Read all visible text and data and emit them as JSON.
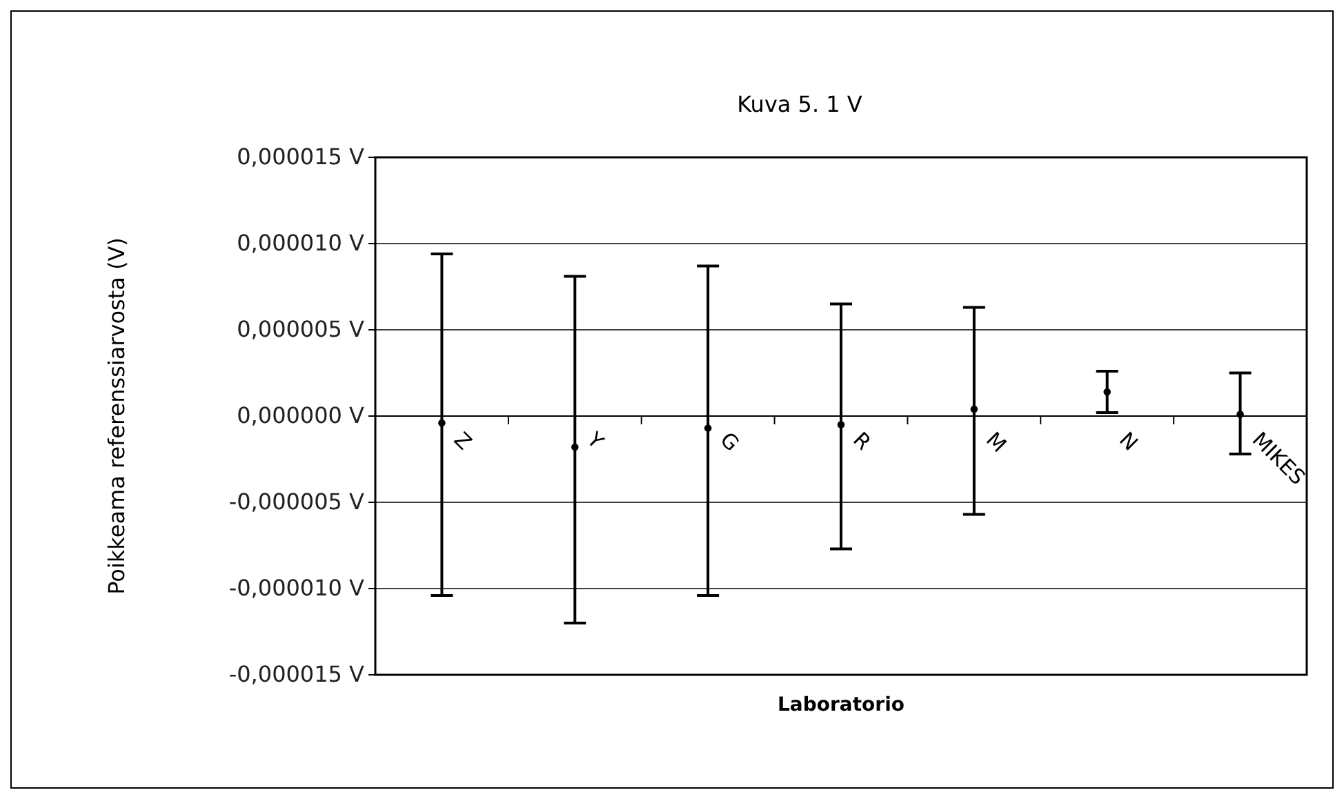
{
  "chart_data": {
    "type": "scatter",
    "title": "Kuva 5. 1 V",
    "xlabel": "Laboratorio",
    "ylabel": "Poikkeama referenssiarvosta (V)",
    "categories": [
      "Z",
      "Y",
      "G",
      "R",
      "M",
      "N",
      "MIKES"
    ],
    "values": [
      -4e-07,
      -1.8e-06,
      -7e-07,
      -5e-07,
      4e-07,
      1.4e-06,
      1e-07
    ],
    "errors": [
      [
        -1.04e-05,
        9.4e-06
      ],
      [
        -1.2e-05,
        8.1e-06
      ],
      [
        -1.04e-05,
        8.7e-06
      ],
      [
        -7.7e-06,
        6.5e-06
      ],
      [
        -5.7e-06,
        6.3e-06
      ],
      [
        2e-07,
        2.6e-06
      ],
      [
        -2.2e-06,
        2.5e-06
      ]
    ],
    "color": "#000000",
    "marker": "circle",
    "grid": "y",
    "ylim": [
      -1.5e-05,
      1.5e-05
    ],
    "yticks": [
      {
        "value": -1.5e-05,
        "label": "-0,000015 V"
      },
      {
        "value": -1e-05,
        "label": "-0,000010 V"
      },
      {
        "value": -5e-06,
        "label": "-0,000005 V"
      },
      {
        "value": 0,
        "label": "0,000000 V"
      },
      {
        "value": 5e-06,
        "label": "0,000005 V"
      },
      {
        "value": 1e-05,
        "label": "0,000010 V"
      },
      {
        "value": 1.5e-05,
        "label": "0,000015 V"
      }
    ]
  }
}
